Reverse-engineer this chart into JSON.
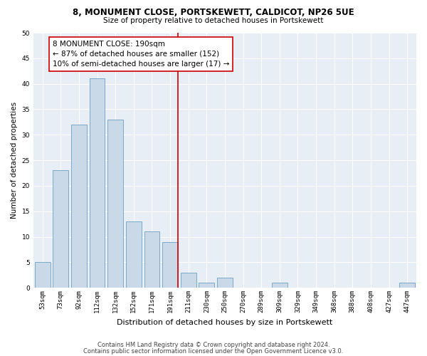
{
  "title1": "8, MONUMENT CLOSE, PORTSKEWETT, CALDICOT, NP26 5UE",
  "title2": "Size of property relative to detached houses in Portskewett",
  "xlabel": "Distribution of detached houses by size in Portskewett",
  "ylabel": "Number of detached properties",
  "bar_labels": [
    "53sqm",
    "73sqm",
    "92sqm",
    "112sqm",
    "132sqm",
    "152sqm",
    "171sqm",
    "191sqm",
    "211sqm",
    "230sqm",
    "250sqm",
    "270sqm",
    "289sqm",
    "309sqm",
    "329sqm",
    "349sqm",
    "368sqm",
    "388sqm",
    "408sqm",
    "427sqm",
    "447sqm"
  ],
  "bar_values": [
    5,
    23,
    32,
    41,
    33,
    13,
    11,
    9,
    3,
    1,
    2,
    0,
    0,
    1,
    0,
    0,
    0,
    0,
    0,
    0,
    1
  ],
  "bar_color": "#c9d9e8",
  "bar_edge_color": "#7aaac8",
  "vline_color": "#cc0000",
  "vline_x_index": 7,
  "annotation_text": "8 MONUMENT CLOSE: 190sqm\n← 87% of detached houses are smaller (152)\n10% of semi-detached houses are larger (17) →",
  "annotation_box_facecolor": "#ffffff",
  "annotation_box_edgecolor": "#cc0000",
  "bg_color": "#e8eef5",
  "grid_color": "#ffffff",
  "footer1": "Contains HM Land Registry data © Crown copyright and database right 2024.",
  "footer2": "Contains public sector information licensed under the Open Government Licence v3.0.",
  "ylim": [
    0,
    50
  ],
  "yticks": [
    0,
    5,
    10,
    15,
    20,
    25,
    30,
    35,
    40,
    45,
    50
  ],
  "title1_fontsize": 8.5,
  "title2_fontsize": 7.5,
  "ylabel_fontsize": 7.5,
  "xlabel_fontsize": 8.0,
  "tick_fontsize": 6.5,
  "annot_fontsize": 7.5,
  "footer_fontsize": 6.0
}
